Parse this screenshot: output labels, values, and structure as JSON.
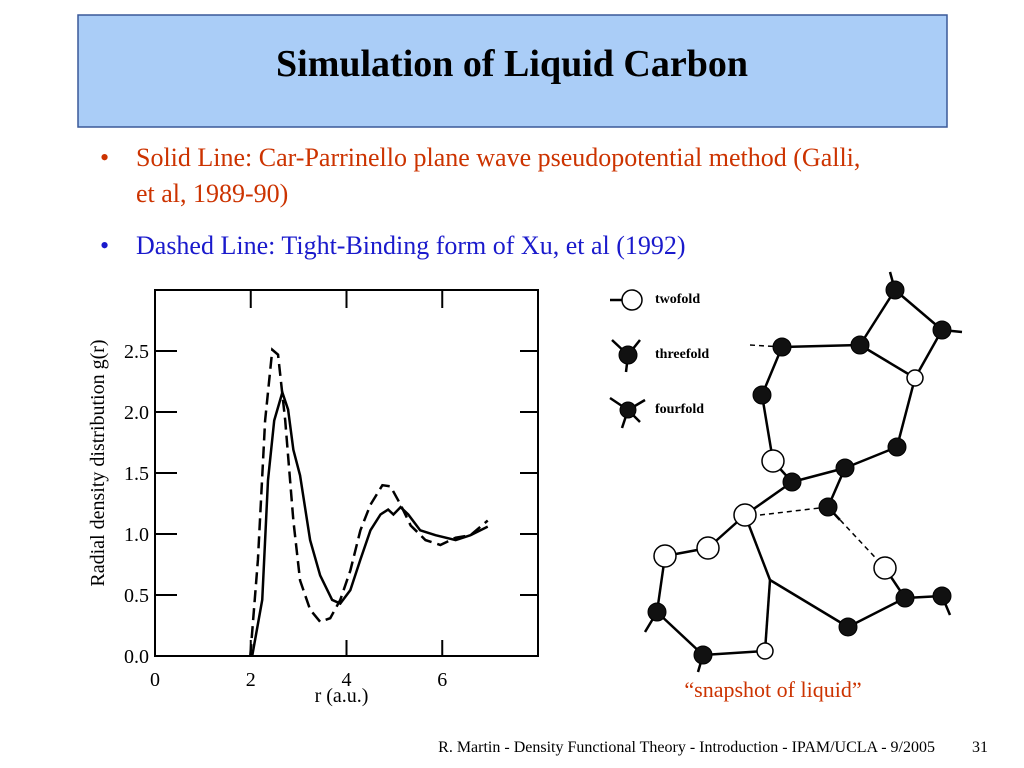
{
  "title": "Simulation of Liquid Carbon",
  "bullets": [
    {
      "text": "Solid Line: Car-Parrinello plane wave pseudopotential method (Galli, et al, 1989-90)",
      "color": "#cc3300"
    },
    {
      "text": "Dashed Line: Tight-Binding form of Xu, et al (1992)",
      "color": "#1a1acc"
    }
  ],
  "chart_data": {
    "type": "line",
    "ylabel": "Radial density distribution g(r)",
    "xlabel": "r  (a.u.)",
    "xlim": [
      0,
      8
    ],
    "xticks": [
      0,
      2,
      4,
      6
    ],
    "ylim": [
      0,
      3
    ],
    "yticks": [
      {
        "value": 0,
        "label": "0.0"
      },
      {
        "value": 0.5,
        "label": "0.5"
      },
      {
        "value": 1,
        "label": "1.0"
      },
      {
        "value": 1.5,
        "label": "1.5"
      },
      {
        "value": 2,
        "label": "2.0"
      },
      {
        "value": 2.5,
        "label": "2.5"
      }
    ],
    "series": [
      {
        "color": "#000000",
        "line_style": "solid",
        "x": [
          2.03,
          2.24,
          2.36,
          2.49,
          2.66,
          2.78,
          2.89,
          3.03,
          3.24,
          3.45,
          3.7,
          3.87,
          4.08,
          4.29,
          4.5,
          4.71,
          4.87,
          4.98,
          5.13,
          5.29,
          5.54,
          5.86,
          6.28,
          6.59,
          6.95
        ],
        "values": [
          0,
          0.46,
          1.44,
          1.93,
          2.16,
          2.02,
          1.69,
          1.48,
          0.95,
          0.66,
          0.46,
          0.43,
          0.54,
          0.79,
          1.03,
          1.16,
          1.2,
          1.16,
          1.22,
          1.16,
          1.03,
          0.99,
          0.95,
          0.99,
          1.06
        ]
      },
      {
        "color": "#000000",
        "line_style": "dashed",
        "x": [
          1.99,
          2.15,
          2.3,
          2.45,
          2.57,
          2.72,
          2.89,
          3.03,
          3.24,
          3.45,
          3.66,
          3.87,
          4.08,
          4.29,
          4.5,
          4.75,
          4.92,
          5.13,
          5.34,
          5.65,
          5.96,
          6.28,
          6.59,
          6.95
        ],
        "values": [
          0,
          0.79,
          1.93,
          2.51,
          2.47,
          1.93,
          1.11,
          0.62,
          0.38,
          0.28,
          0.31,
          0.46,
          0.7,
          1.03,
          1.24,
          1.4,
          1.39,
          1.24,
          1.07,
          0.95,
          0.91,
          0.97,
          0.99,
          1.11
        ]
      }
    ]
  },
  "diagram": {
    "legend": [
      "twofold",
      "threefold",
      "fourfold"
    ],
    "caption": "“snapshot of liquid”"
  },
  "footer": "R. Martin - Density Functional Theory - Introduction - IPAM/UCLA - 9/2005",
  "page_number": "31"
}
